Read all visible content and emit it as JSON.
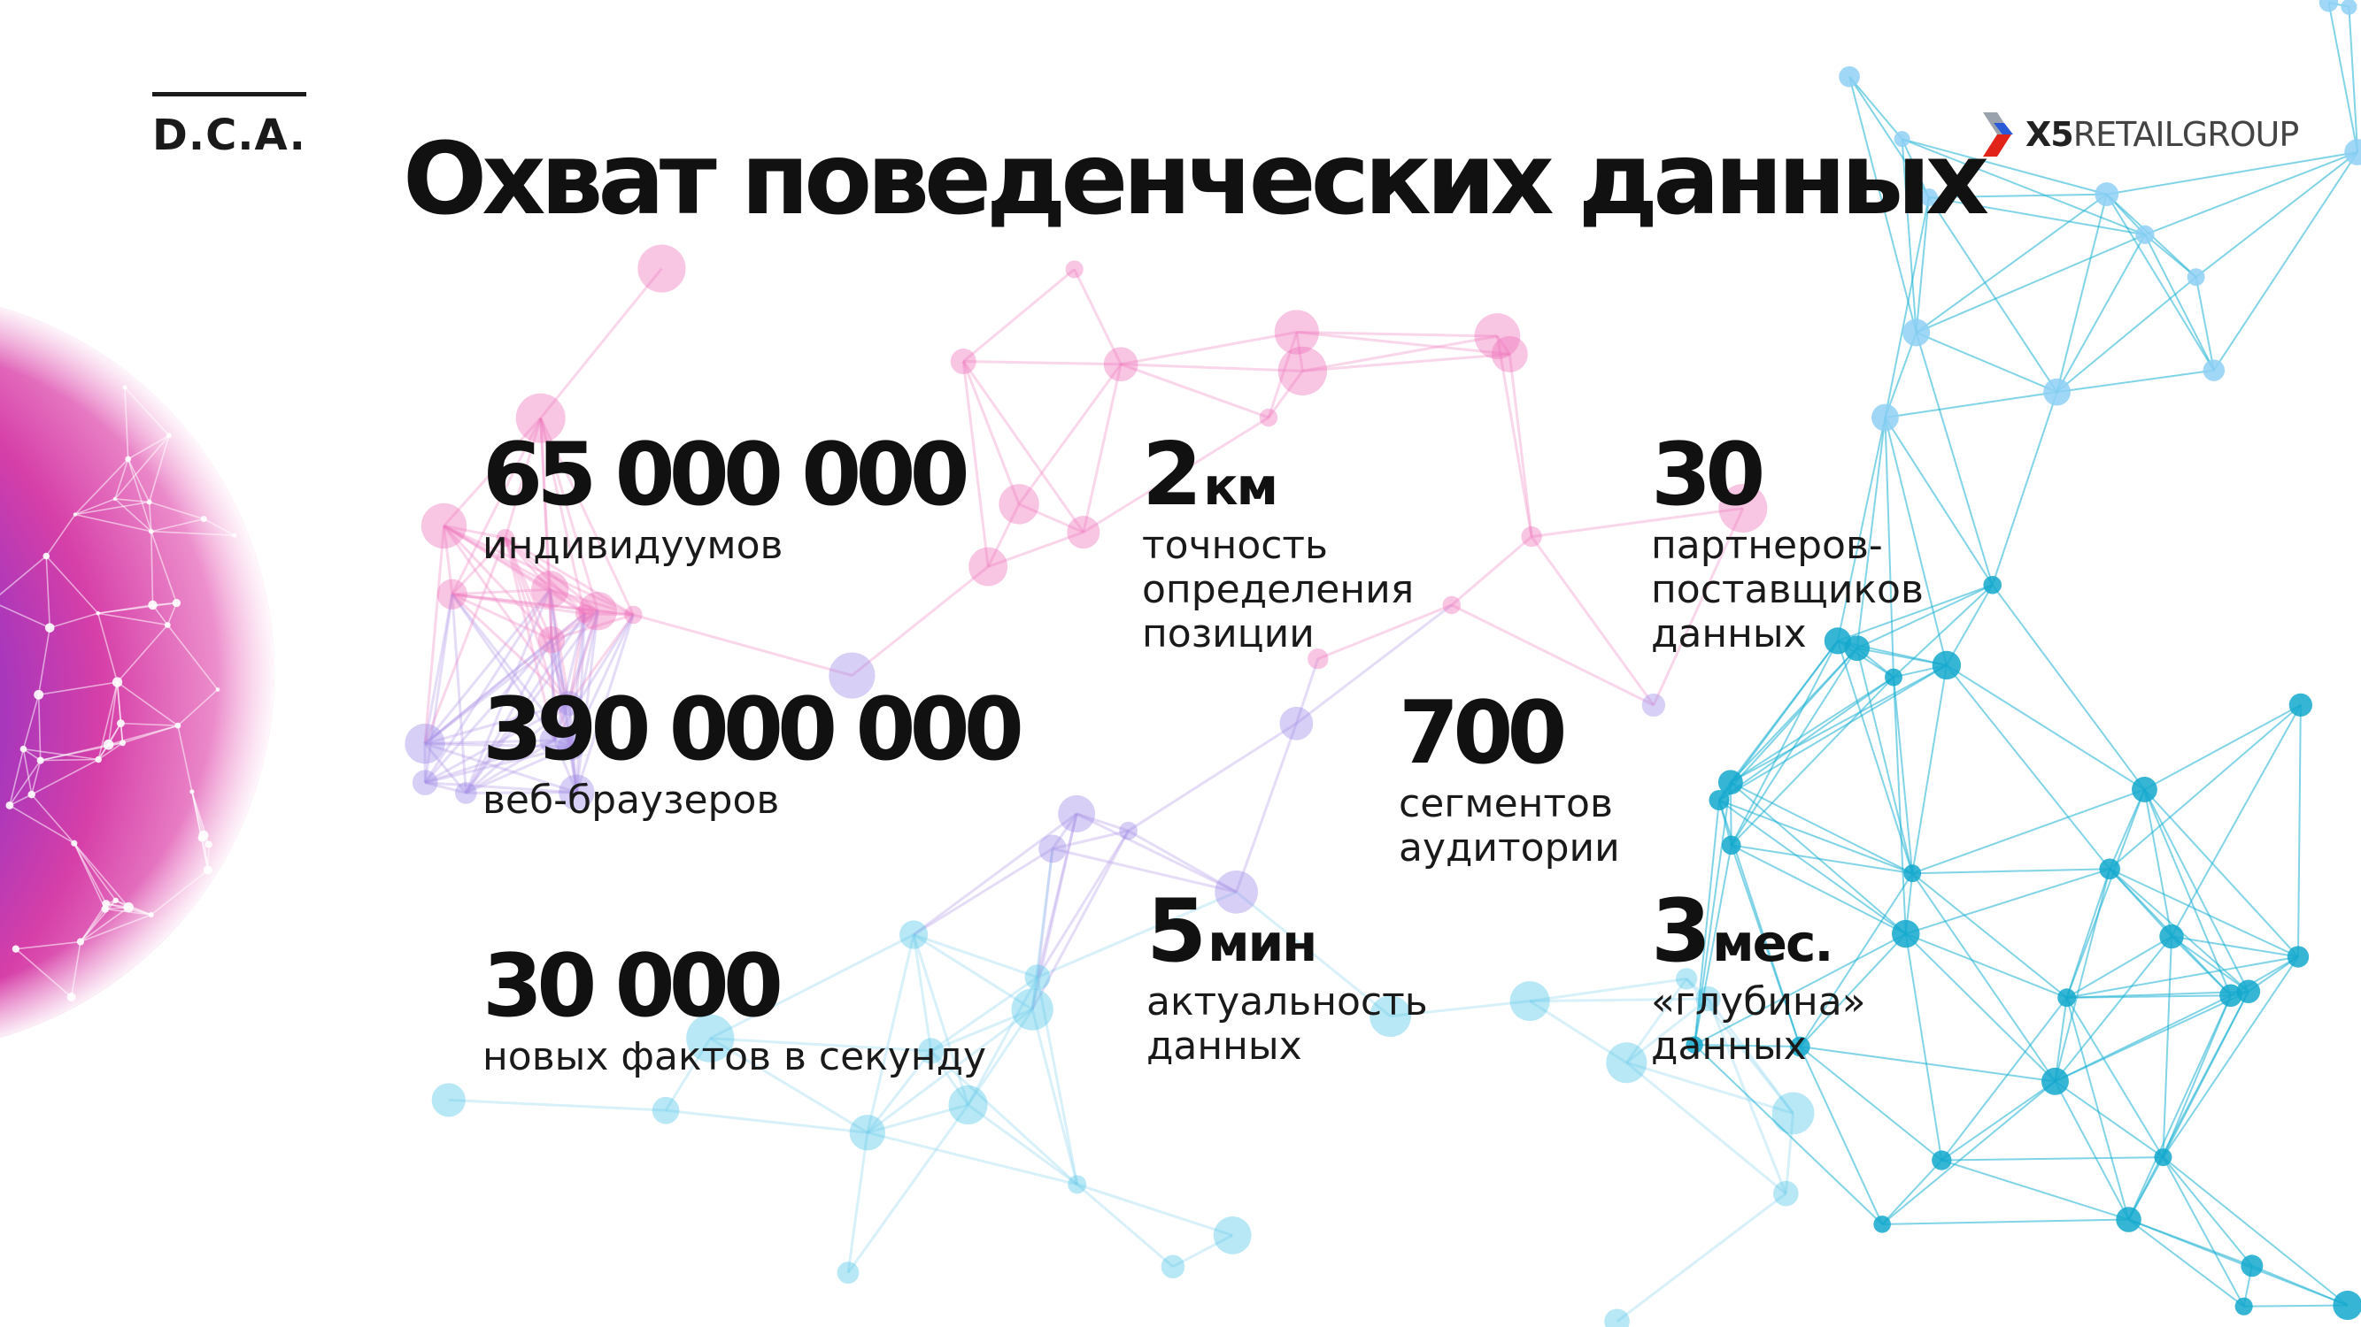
{
  "brand": {
    "dca": "D.C.A.",
    "logo_x5": "X5",
    "logo_rest": "RETAILGROUP"
  },
  "title": "Охват поведенческих данных",
  "stats": {
    "individuals": {
      "value": "65 000 000",
      "unit": "",
      "label": [
        "индивидуумов"
      ]
    },
    "browsers": {
      "value": "390 000 000",
      "unit": "",
      "label": [
        "веб-браузеров"
      ]
    },
    "facts": {
      "value": "30 000",
      "unit": "",
      "label": [
        "новых фактов в секунду"
      ]
    },
    "accuracy": {
      "value": "2",
      "unit": "км",
      "label": [
        "точность",
        "определения",
        "позиции"
      ]
    },
    "partners": {
      "value": "30",
      "unit": "",
      "label": [
        "партнеров-",
        "поставщиков",
        "данных"
      ]
    },
    "segments": {
      "value": "700",
      "unit": "",
      "label": [
        "сегментов",
        "аудитории"
      ]
    },
    "freshness": {
      "value": "5",
      "unit": "мин",
      "label": [
        "актуальность",
        "данных"
      ]
    },
    "depth": {
      "value": "3",
      "unit": "мес.",
      "label": [
        "«глубина»",
        "данных"
      ]
    }
  },
  "colors": {
    "text": "#111111",
    "pink": "#e8399a",
    "purple": "#7a2fd0",
    "cyan": "#1ab0d4",
    "logo_blue": "#2a5bd7",
    "logo_red": "#e2231a"
  }
}
